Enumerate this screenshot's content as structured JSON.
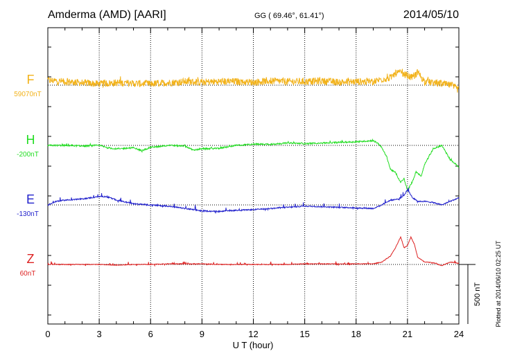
{
  "header": {
    "station": "Amderma (AMD)  [AARI]",
    "coords": "GG ( 69.46°,  61.41°)",
    "date": "2014/05/10"
  },
  "footer": {
    "plotted": "Plotted at 2014/06/10 02:25 UT"
  },
  "chart_data": {
    "type": "line",
    "title": "Amderma (AMD)  [AARI]",
    "xlabel": "U T (hour)",
    "xlim": [
      0,
      24
    ],
    "xticks": [
      0,
      3,
      6,
      9,
      12,
      15,
      18,
      21,
      24
    ],
    "xtick_labels": [
      "0",
      "3",
      "6",
      "9",
      "12",
      "15",
      "18",
      "21",
      "24"
    ],
    "scale_bar": {
      "label": "500 nT",
      "value_nT": 500
    },
    "grid": "dotted vertical every 3 h",
    "series": [
      {
        "name": "F",
        "baseline_label": "59070nT",
        "baseline_nT": 59070,
        "color": "#f2b21a",
        "noise_nT": 30,
        "spike_nT": 45,
        "x": [
          0,
          1,
          2,
          3,
          4,
          5,
          6,
          7,
          8,
          9,
          10,
          11,
          12,
          13,
          14,
          15,
          16,
          17,
          18,
          19,
          19.5,
          20,
          20.3,
          20.6,
          21,
          21.3,
          21.6,
          22,
          22.5,
          23,
          23.5,
          24
        ],
        "y": [
          40,
          30,
          20,
          10,
          20,
          15,
          10,
          20,
          30,
          25,
          30,
          30,
          25,
          35,
          30,
          30,
          35,
          25,
          30,
          30,
          50,
          60,
          100,
          105,
          80,
          60,
          110,
          30,
          20,
          10,
          0,
          -40
        ]
      },
      {
        "name": "H",
        "baseline_label": "-200nT",
        "baseline_nT": -200,
        "color": "#22dd22",
        "noise_nT": 6,
        "spike_nT": 20,
        "x": [
          0,
          1,
          2,
          3,
          3.5,
          4,
          5,
          5.5,
          6,
          6.5,
          7,
          8,
          8.5,
          9,
          10,
          11,
          12,
          13,
          14,
          15,
          16,
          17,
          18,
          19,
          19.3,
          19.5,
          19.8,
          20,
          20.3,
          20.6,
          20.8,
          21,
          21.3,
          21.5,
          21.8,
          22,
          22.5,
          23,
          23.5,
          24
        ],
        "y": [
          0,
          0,
          -5,
          0,
          -20,
          -30,
          -20,
          -45,
          -15,
          -10,
          0,
          -5,
          -40,
          -30,
          -25,
          0,
          10,
          10,
          20,
          15,
          20,
          25,
          30,
          40,
          15,
          -20,
          -100,
          -200,
          -230,
          -310,
          -280,
          -380,
          -300,
          -220,
          -260,
          -160,
          -30,
          0,
          -120,
          -180
        ]
      },
      {
        "name": "E",
        "baseline_label": "-130nT",
        "baseline_nT": -130,
        "color": "#2222cc",
        "noise_nT": 5,
        "spike_nT": 50,
        "x": [
          0,
          0.5,
          1,
          2,
          3,
          3.5,
          4,
          5,
          6,
          7,
          8,
          9,
          10,
          11,
          12,
          13,
          14,
          15,
          16,
          17,
          18,
          19,
          19.5,
          20,
          20.5,
          20.8,
          21,
          21.3,
          21.6,
          22,
          22.5,
          23,
          23.5,
          24
        ],
        "y": [
          0,
          30,
          40,
          50,
          70,
          70,
          40,
          10,
          0,
          -10,
          -30,
          -50,
          -55,
          -45,
          -40,
          -30,
          -20,
          -10,
          -15,
          -20,
          -25,
          -30,
          0,
          40,
          50,
          80,
          130,
          60,
          30,
          30,
          20,
          0,
          30,
          60
        ]
      },
      {
        "name": "Z",
        "baseline_label": "60nT",
        "baseline_nT": 60,
        "color": "#dd2222",
        "noise_nT": 3,
        "spike_nT": 35,
        "x": [
          0,
          1,
          2,
          3,
          4,
          5,
          6,
          7,
          8,
          9,
          10,
          11,
          12,
          13,
          14,
          15,
          16,
          17,
          18,
          19,
          19.5,
          20,
          20.3,
          20.6,
          20.8,
          21,
          21.2,
          21.4,
          21.6,
          22,
          22.5,
          23,
          23.5,
          24
        ],
        "y": [
          0,
          0,
          0,
          0,
          -5,
          0,
          0,
          5,
          5,
          5,
          0,
          0,
          0,
          0,
          0,
          5,
          5,
          5,
          5,
          5,
          20,
          70,
          140,
          230,
          140,
          160,
          230,
          170,
          60,
          20,
          15,
          -10,
          20,
          10
        ]
      }
    ]
  }
}
